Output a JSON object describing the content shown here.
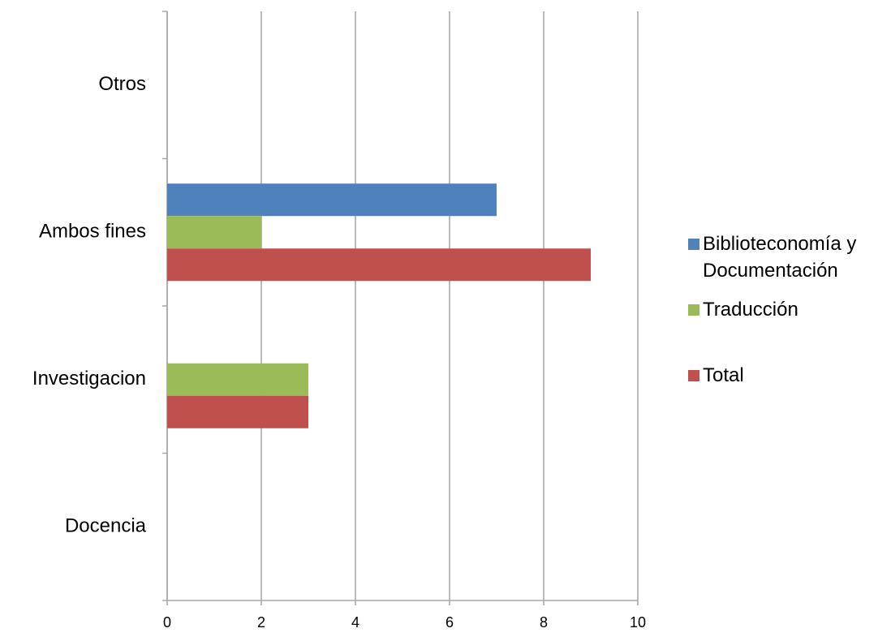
{
  "chart_data": {
    "type": "bar",
    "orientation": "horizontal",
    "categories": [
      "Docencia",
      "Investigacion",
      "Ambos fines",
      "Otros"
    ],
    "series": [
      {
        "name": "Biblioteconomía y Documentación",
        "color": "#4f81bd",
        "values": [
          0,
          0,
          7,
          0
        ]
      },
      {
        "name": "Traducción",
        "color": "#9bbb59",
        "values": [
          0,
          3,
          2,
          0
        ]
      },
      {
        "name": "Total",
        "color": "#c0504d",
        "values": [
          0,
          3,
          9,
          0
        ]
      }
    ],
    "xlim": [
      0,
      10
    ],
    "xticks": [
      0,
      2,
      4,
      6,
      8,
      10
    ],
    "grid": true,
    "legend": "right"
  }
}
